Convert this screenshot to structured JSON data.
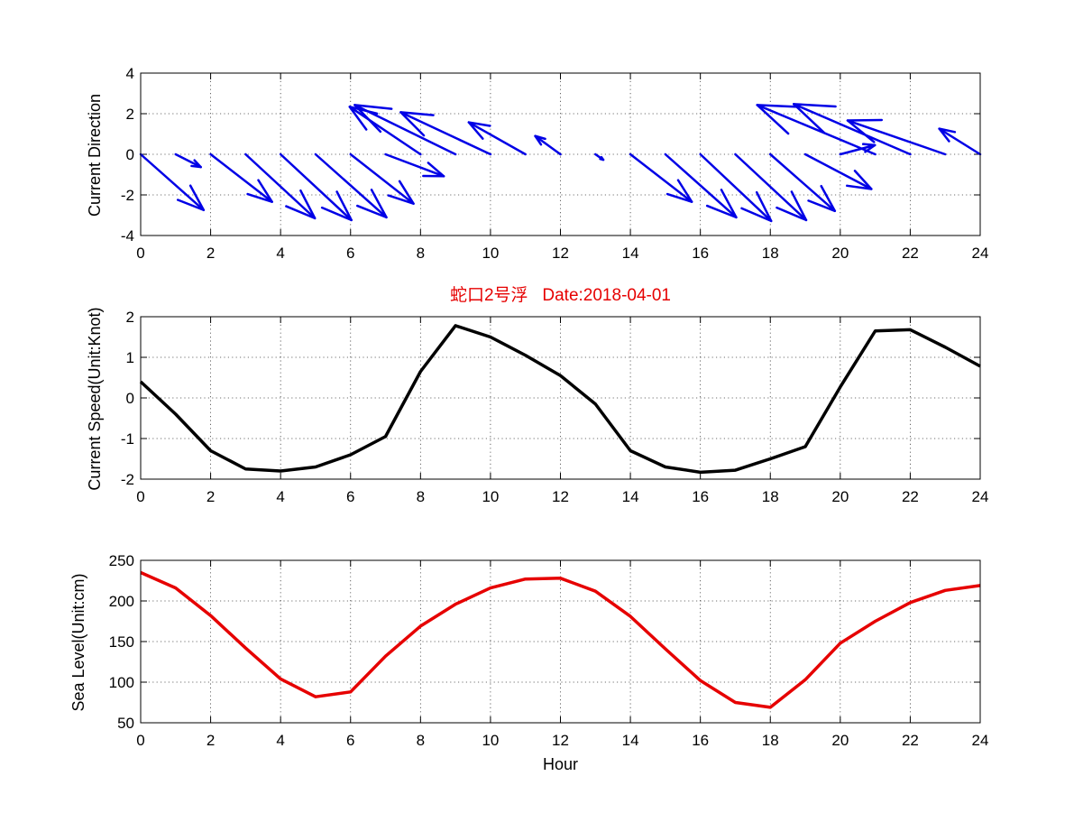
{
  "chart_data": [
    {
      "type": "quiver",
      "ylabel": "Current Direction",
      "xlim": [
        0,
        24
      ],
      "ylim": [
        -4,
        4
      ],
      "xticks": [
        0,
        2,
        4,
        6,
        8,
        10,
        12,
        14,
        16,
        18,
        20,
        22,
        24
      ],
      "yticks": [
        -4,
        -2,
        0,
        2,
        4
      ],
      "grid": true,
      "color": "#0000e6",
      "arrows": [
        {
          "x": 0,
          "y": 0,
          "u": 2.0,
          "v": -3.05
        },
        {
          "x": 1,
          "y": 0,
          "u": 0.8,
          "v": -0.7
        },
        {
          "x": 2,
          "y": 0,
          "u": 1.95,
          "v": -2.6
        },
        {
          "x": 3,
          "y": 0,
          "u": 2.2,
          "v": -3.5
        },
        {
          "x": 4,
          "y": 0,
          "u": 2.25,
          "v": -3.6
        },
        {
          "x": 5,
          "y": 0,
          "u": 2.25,
          "v": -3.45
        },
        {
          "x": 6,
          "y": 0,
          "u": 2.0,
          "v": -2.7
        },
        {
          "x": 7,
          "y": 0,
          "u": 1.85,
          "v": -1.2
        },
        {
          "x": 8,
          "y": 0,
          "u": -2.25,
          "v": 2.6
        },
        {
          "x": 9,
          "y": 0,
          "u": -3.2,
          "v": 2.7
        },
        {
          "x": 10,
          "y": 0,
          "u": -2.85,
          "v": 2.3
        },
        {
          "x": 11,
          "y": 0,
          "u": -1.8,
          "v": 1.75
        },
        {
          "x": 12,
          "y": 0,
          "u": -0.8,
          "v": 1.0
        },
        {
          "x": 13,
          "y": 0,
          "u": 0.25,
          "v": -0.3
        },
        {
          "x": 14,
          "y": 0,
          "u": 1.95,
          "v": -2.6
        },
        {
          "x": 15,
          "y": 0,
          "u": 2.25,
          "v": -3.45
        },
        {
          "x": 16,
          "y": 0,
          "u": 2.25,
          "v": -3.65
        },
        {
          "x": 17,
          "y": 0,
          "u": 2.25,
          "v": -3.6
        },
        {
          "x": 18,
          "y": 0,
          "u": 2.05,
          "v": -3.1
        },
        {
          "x": 19,
          "y": 0,
          "u": 2.1,
          "v": -1.9
        },
        {
          "x": 20,
          "y": 0,
          "u": 1.1,
          "v": 0.5
        },
        {
          "x": 21,
          "y": 0,
          "u": -3.75,
          "v": 2.7
        },
        {
          "x": 22,
          "y": 0,
          "u": -3.7,
          "v": 2.75
        },
        {
          "x": 23,
          "y": 0,
          "u": -3.1,
          "v": 1.85
        },
        {
          "x": 24,
          "y": 0,
          "u": -1.3,
          "v": 1.4
        }
      ]
    },
    {
      "type": "line",
      "title": "蛇口2号浮   Date:2018-04-01",
      "ylabel": "Current Speed(Unit:Knot)",
      "xlim": [
        0,
        24
      ],
      "ylim": [
        -2,
        2
      ],
      "xticks": [
        0,
        2,
        4,
        6,
        8,
        10,
        12,
        14,
        16,
        18,
        20,
        22,
        24
      ],
      "yticks": [
        -2,
        -1,
        0,
        1,
        2
      ],
      "grid": true,
      "color": "#000000",
      "x": [
        0,
        1,
        2,
        3,
        4,
        5,
        6,
        7,
        8,
        9,
        10,
        11,
        12,
        13,
        14,
        15,
        16,
        17,
        18,
        19,
        20,
        21,
        22,
        23,
        24
      ],
      "y": [
        0.4,
        -0.4,
        -1.3,
        -1.75,
        -1.8,
        -1.7,
        -1.4,
        -0.95,
        0.65,
        1.78,
        1.5,
        1.05,
        0.55,
        -0.15,
        -1.3,
        -1.7,
        -1.83,
        -1.78,
        -1.5,
        -1.2,
        0.27,
        1.65,
        1.68,
        1.25,
        0.78
      ]
    },
    {
      "type": "line",
      "xlabel": "Hour",
      "ylabel": "Sea Level(Unit:cm)",
      "xlim": [
        0,
        24
      ],
      "ylim": [
        50,
        250
      ],
      "xticks": [
        0,
        2,
        4,
        6,
        8,
        10,
        12,
        14,
        16,
        18,
        20,
        22,
        24
      ],
      "yticks": [
        50,
        100,
        150,
        200,
        250
      ],
      "grid": true,
      "color": "#e60000",
      "x": [
        0,
        1,
        2,
        3,
        4,
        5,
        6,
        7,
        8,
        9,
        10,
        11,
        12,
        13,
        14,
        15,
        16,
        17,
        18,
        19,
        20,
        21,
        22,
        23,
        24
      ],
      "y": [
        235,
        216,
        182,
        142,
        104,
        82,
        88,
        132,
        169,
        196,
        216,
        227,
        228,
        212,
        181,
        141,
        102,
        75,
        69,
        103,
        148,
        175,
        198,
        213,
        219
      ]
    }
  ]
}
